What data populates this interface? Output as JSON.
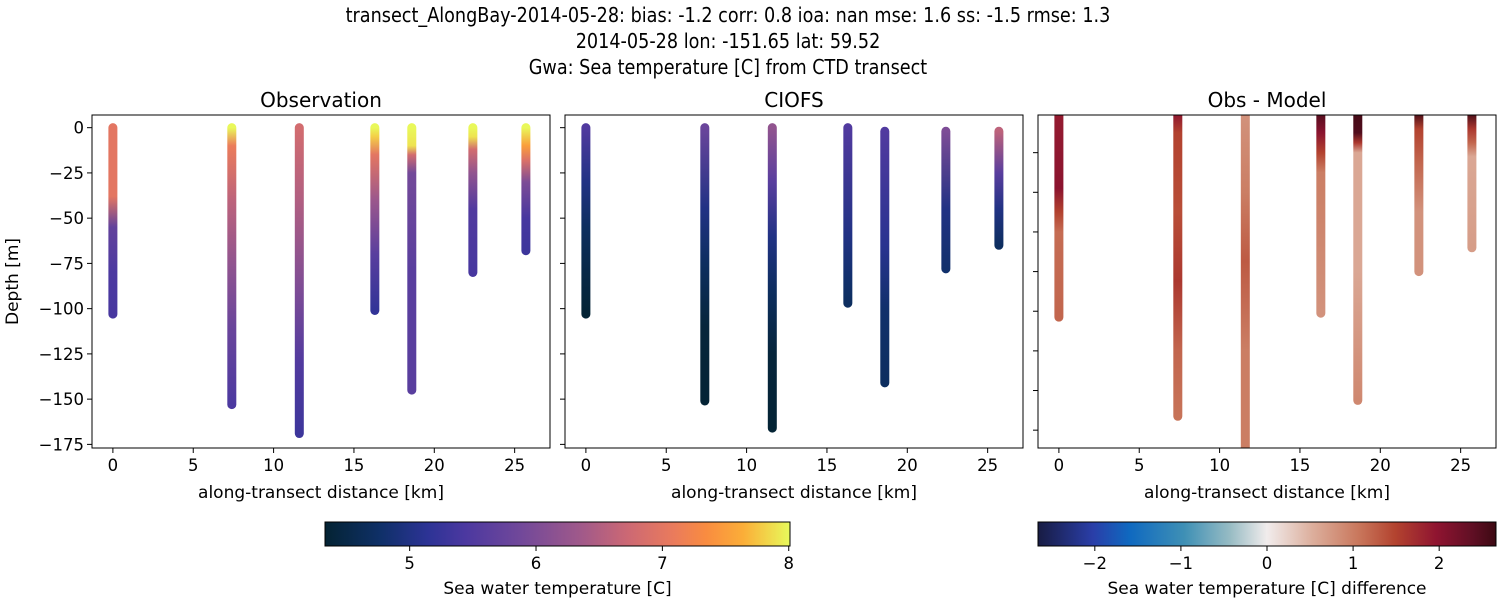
{
  "chart_data": {
    "suptitle": [
      "transect_AlongBay-2014-05-28: bias: -1.2  corr: 0.8  ioa: nan  mse: 1.6  ss: -1.5  rmse: 1.3",
      "2014-05-28 lon: -151.65 lat: 59.52",
      "Gwa: Sea temperature [C] from CTD transect"
    ],
    "panels": [
      {
        "title": "Observation",
        "type": "scatter",
        "xlabel": "along-transect distance [km]",
        "ylabel": "Depth [m]",
        "xlim": [
          -1.3,
          27.2
        ],
        "ylim": [
          -177,
          7
        ],
        "xticks": [
          0,
          5,
          10,
          15,
          20,
          25
        ],
        "yticks": [
          0,
          -25,
          -50,
          -75,
          -100,
          -125,
          -150,
          -175
        ],
        "ytick_labels_shown": true,
        "colormap": "thermal",
        "clim": [
          4.33,
          8.01
        ],
        "casts": [
          {
            "x": 0.0,
            "profile": [
              [
                0,
                7.0
              ],
              [
                -38,
                7.0
              ],
              [
                -55,
                5.7
              ],
              [
                -80,
                5.45
              ],
              [
                -103,
                5.4
              ]
            ]
          },
          {
            "x": 7.4,
            "profile": [
              [
                0,
                8.0
              ],
              [
                -10,
                7.1
              ],
              [
                -40,
                6.6
              ],
              [
                -75,
                6.2
              ],
              [
                -110,
                5.8
              ],
              [
                -153,
                5.45
              ]
            ]
          },
          {
            "x": 11.6,
            "profile": [
              [
                0,
                6.8
              ],
              [
                -40,
                6.5
              ],
              [
                -90,
                6.0
              ],
              [
                -130,
                5.5
              ],
              [
                -169,
                5.3
              ]
            ]
          },
          {
            "x": 16.3,
            "profile": [
              [
                0,
                8.0
              ],
              [
                -5,
                7.8
              ],
              [
                -15,
                7.0
              ],
              [
                -40,
                6.3
              ],
              [
                -70,
                5.6
              ],
              [
                -101,
                5.2
              ]
            ]
          },
          {
            "x": 18.6,
            "profile": [
              [
                0,
                8.0
              ],
              [
                -10,
                7.9
              ],
              [
                -15,
                6.8
              ],
              [
                -25,
                5.9
              ],
              [
                -80,
                5.6
              ],
              [
                -145,
                5.6
              ]
            ]
          },
          {
            "x": 22.4,
            "profile": [
              [
                0,
                8.0
              ],
              [
                -5,
                7.9
              ],
              [
                -12,
                6.8
              ],
              [
                -25,
                6.2
              ],
              [
                -45,
                5.5
              ],
              [
                -80,
                5.4
              ]
            ]
          },
          {
            "x": 25.7,
            "profile": [
              [
                0,
                8.0
              ],
              [
                -10,
                7.5
              ],
              [
                -18,
                6.9
              ],
              [
                -30,
                6.0
              ],
              [
                -50,
                5.4
              ],
              [
                -68,
                5.3
              ]
            ]
          }
        ]
      },
      {
        "title": "CIOFS",
        "type": "scatter",
        "xlabel": "along-transect distance [km]",
        "xlim": [
          -1.3,
          27.2
        ],
        "ylim": [
          -177,
          7
        ],
        "xticks": [
          0,
          5,
          10,
          15,
          20,
          25
        ],
        "yticks": [
          0,
          -25,
          -50,
          -75,
          -100,
          -125,
          -150,
          -175
        ],
        "ytick_labels_shown": false,
        "colormap": "thermal",
        "clim": [
          4.33,
          8.01
        ],
        "casts": [
          {
            "x": 0.0,
            "profile": [
              [
                0,
                5.5
              ],
              [
                -30,
                5.0
              ],
              [
                -55,
                4.7
              ],
              [
                -80,
                4.5
              ],
              [
                -103,
                4.35
              ]
            ]
          },
          {
            "x": 7.4,
            "profile": [
              [
                0,
                5.8
              ],
              [
                -45,
                5.0
              ],
              [
                -75,
                4.7
              ],
              [
                -110,
                4.4
              ],
              [
                -151,
                4.35
              ]
            ]
          },
          {
            "x": 11.6,
            "profile": [
              [
                0,
                6.2
              ],
              [
                -30,
                5.6
              ],
              [
                -60,
                5.0
              ],
              [
                -90,
                4.7
              ],
              [
                -125,
                4.4
              ],
              [
                -166,
                4.35
              ]
            ]
          },
          {
            "x": 16.3,
            "profile": [
              [
                0,
                5.5
              ],
              [
                -60,
                5.0
              ],
              [
                -85,
                4.8
              ],
              [
                -97,
                4.7
              ]
            ]
          },
          {
            "x": 18.6,
            "profile": [
              [
                -2,
                5.5
              ],
              [
                -65,
                5.1
              ],
              [
                -100,
                4.8
              ],
              [
                -141,
                4.7
              ]
            ]
          },
          {
            "x": 22.4,
            "profile": [
              [
                -2,
                6.0
              ],
              [
                -45,
                5.0
              ],
              [
                -78,
                4.8
              ]
            ]
          },
          {
            "x": 25.7,
            "profile": [
              [
                -2,
                6.6
              ],
              [
                -25,
                5.6
              ],
              [
                -45,
                5.0
              ],
              [
                -65,
                4.7
              ]
            ]
          }
        ]
      },
      {
        "title": "Obs - Model",
        "type": "scatter",
        "xlabel": "along-transect distance [km]",
        "xlim": [
          -1.3,
          27.2
        ],
        "ylim": [
          -169,
          -1
        ],
        "xticks": [
          0,
          5,
          10,
          15,
          20,
          25
        ],
        "yticks": [
          -20,
          -40,
          -60,
          -80,
          -100,
          -120,
          -140,
          -160
        ],
        "ytick_labels_shown": false,
        "colormap": "balance",
        "clim": [
          -2.66,
          2.66
        ],
        "casts": [
          {
            "x": 0.0,
            "profile": [
              [
                0,
                1.9
              ],
              [
                -38,
                2.0
              ],
              [
                -50,
                1.5
              ],
              [
                -60,
                1.15
              ],
              [
                -103,
                1.2
              ]
            ]
          },
          {
            "x": 7.4,
            "profile": [
              [
                0,
                2.0
              ],
              [
                -10,
                1.5
              ],
              [
                -50,
                1.4
              ],
              [
                -85,
                1.6
              ],
              [
                -120,
                1.2
              ],
              [
                -153,
                1.1
              ]
            ]
          },
          {
            "x": 11.6,
            "profile": [
              [
                0,
                0.8
              ],
              [
                -40,
                1.0
              ],
              [
                -75,
                1.3
              ],
              [
                -120,
                1.0
              ],
              [
                -169,
                1.0
              ]
            ]
          },
          {
            "x": 16.3,
            "profile": [
              [
                0,
                2.5
              ],
              [
                -10,
                2.0
              ],
              [
                -20,
                1.5
              ],
              [
                -30,
                1.0
              ],
              [
                -101,
                0.8
              ]
            ]
          },
          {
            "x": 18.6,
            "profile": [
              [
                0,
                2.6
              ],
              [
                -10,
                2.5
              ],
              [
                -15,
                1.6
              ],
              [
                -20,
                0.6
              ],
              [
                -80,
                0.6
              ],
              [
                -145,
                0.9
              ]
            ]
          },
          {
            "x": 22.4,
            "profile": [
              [
                0,
                2.6
              ],
              [
                -8,
                1.5
              ],
              [
                -25,
                1.2
              ],
              [
                -50,
                0.8
              ],
              [
                -80,
                0.8
              ]
            ]
          },
          {
            "x": 25.7,
            "profile": [
              [
                0,
                2.6
              ],
              [
                -8,
                1.6
              ],
              [
                -15,
                1.2
              ],
              [
                -22,
                0.6
              ],
              [
                -68,
                0.7
              ]
            ]
          }
        ]
      }
    ],
    "colorbars": [
      {
        "label": "Sea water temperature [C]",
        "colormap": "thermal",
        "range": [
          4.33,
          8.01
        ],
        "ticks": [
          5,
          6,
          7,
          8
        ],
        "tick_labels": [
          "5",
          "6",
          "7",
          "8"
        ]
      },
      {
        "label": "Sea water temperature [C] difference",
        "colormap": "balance",
        "range": [
          -2.66,
          2.66
        ],
        "ticks": [
          -2,
          -1,
          0,
          1,
          2
        ],
        "tick_labels": [
          "−2",
          "−1",
          "0",
          "1",
          "2"
        ]
      }
    ],
    "colormaps": {
      "thermal": [
        [
          0,
          "#042333"
        ],
        [
          0.12,
          "#0f3068"
        ],
        [
          0.22,
          "#2c3395"
        ],
        [
          0.3,
          "#4b38a0"
        ],
        [
          0.42,
          "#71489a"
        ],
        [
          0.55,
          "#a0598a"
        ],
        [
          0.65,
          "#cc6874"
        ],
        [
          0.75,
          "#ea7b5c"
        ],
        [
          0.82,
          "#f98c40"
        ],
        [
          0.9,
          "#fbae38"
        ],
        [
          1,
          "#e8fa5b"
        ]
      ],
      "balance": [
        [
          0,
          "#181c43"
        ],
        [
          0.12,
          "#2a3ea8"
        ],
        [
          0.2,
          "#0f69c0"
        ],
        [
          0.32,
          "#3f90b5"
        ],
        [
          0.42,
          "#98bcc4"
        ],
        [
          0.5,
          "#f1ecec"
        ],
        [
          0.6,
          "#dcae9c"
        ],
        [
          0.7,
          "#c9775c"
        ],
        [
          0.78,
          "#b3432f"
        ],
        [
          0.87,
          "#8f1430"
        ],
        [
          0.95,
          "#5f0f24"
        ],
        [
          1,
          "#3c0912"
        ]
      ]
    }
  }
}
